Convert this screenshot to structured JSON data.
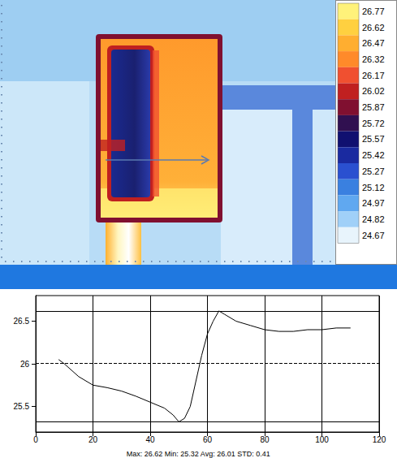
{
  "chart_data": {
    "type": "line",
    "x": [
      8,
      10,
      15,
      20,
      25,
      30,
      35,
      40,
      45,
      48,
      50,
      52,
      54,
      56,
      58,
      60,
      62,
      64,
      66,
      70,
      75,
      80,
      85,
      90,
      95,
      100,
      105,
      110
    ],
    "values": [
      26.05,
      26.0,
      25.85,
      25.75,
      25.72,
      25.68,
      25.62,
      25.55,
      25.48,
      25.4,
      25.32,
      25.36,
      25.5,
      25.8,
      26.1,
      26.35,
      26.5,
      26.62,
      26.58,
      26.5,
      26.45,
      26.4,
      26.38,
      26.38,
      26.4,
      26.4,
      26.42,
      26.42
    ],
    "color": "#000000",
    "xlim": [
      0,
      120
    ],
    "xticks": [
      0,
      20,
      40,
      60,
      80,
      100,
      120
    ],
    "ylim": [
      25.2,
      26.8
    ],
    "yticks": [
      25.5,
      26,
      26.5
    ],
    "grid": true,
    "hlines": [
      {
        "value": 26.62,
        "line_style": "solid"
      },
      {
        "value": 25.32,
        "line_style": "solid"
      },
      {
        "value": 26.01,
        "line_style": "dashed"
      }
    ],
    "annotation": "Max: 26.62 Min: 25.32 Avg: 26.01 STD: 0.41"
  },
  "thermal_image": {
    "colorbar": {
      "ticks": [
        26.77,
        26.62,
        26.47,
        26.32,
        26.17,
        26.02,
        25.87,
        25.72,
        25.57,
        25.42,
        25.27,
        25.12,
        24.97,
        24.82,
        24.67
      ],
      "colors": [
        "#fff27a",
        "#ffd040",
        "#ffae30",
        "#ff8a2a",
        "#f05030",
        "#c02020",
        "#801030",
        "#301050",
        "#101070",
        "#1a2aa0",
        "#2a50d0",
        "#3a80e0",
        "#60a8f0",
        "#a0d0f8",
        "#e8f4fc"
      ]
    }
  }
}
